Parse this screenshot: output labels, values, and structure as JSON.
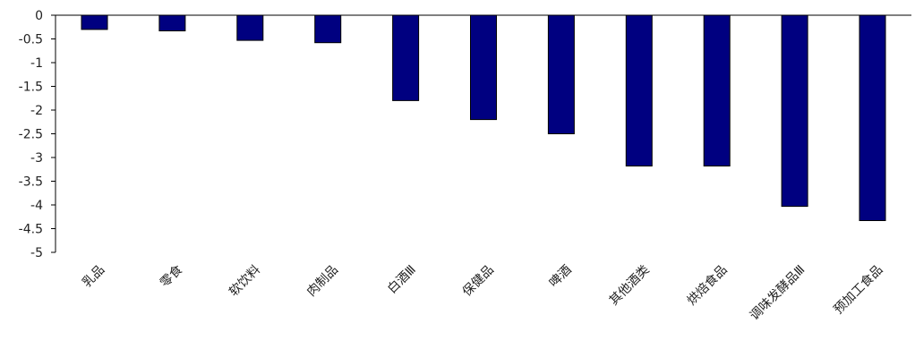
{
  "chart_data": {
    "type": "bar",
    "title": "",
    "xlabel": "",
    "ylabel": "",
    "ylim": [
      -5,
      0
    ],
    "yticks": [
      0,
      -0.5,
      -1,
      -1.5,
      -2,
      -2.5,
      -3,
      -3.5,
      -4,
      -4.5,
      -5
    ],
    "ytick_labels": [
      "0",
      "-0.5",
      "-1",
      "-1.5",
      "-2",
      "-2.5",
      "-3",
      "-3.5",
      "-4",
      "-4.5",
      "-5"
    ],
    "categories": [
      "乳品",
      "零食",
      "软饮料",
      "肉制品",
      "白酒Ⅲ",
      "保健品",
      "啤酒",
      "其他酒类",
      "烘焙食品",
      "调味发酵品Ⅲ",
      "预加工食品"
    ],
    "values": [
      -0.3,
      -0.33,
      -0.53,
      -0.58,
      -1.8,
      -2.2,
      -2.5,
      -3.18,
      -3.18,
      -4.03,
      -4.33
    ],
    "grid": false,
    "legend": "none",
    "bar_color": "#000080",
    "bar_edge_color": "#000000"
  }
}
